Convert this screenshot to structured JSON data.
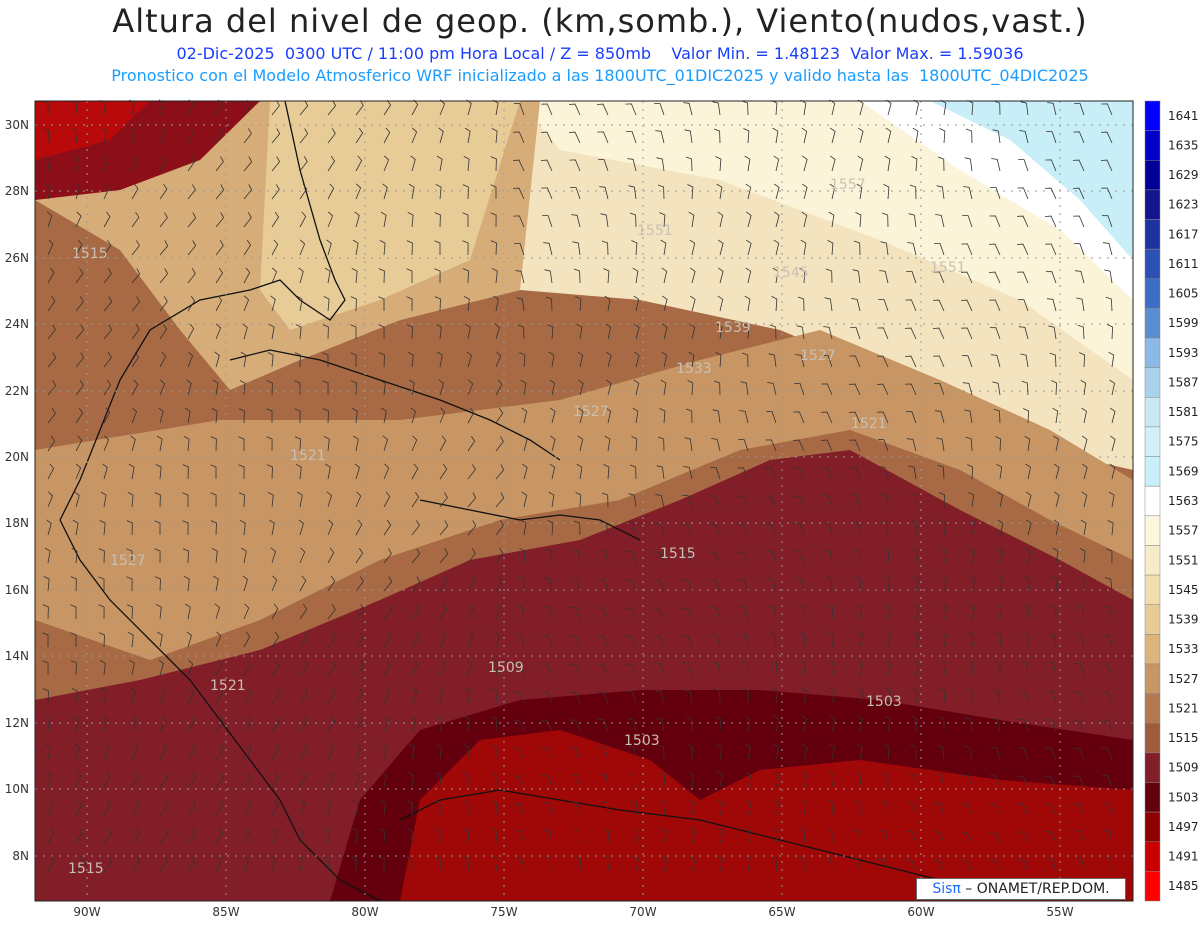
{
  "header": {
    "title": "Altura del nivel de geop. (km,somb.), Viento(nudos,vast.)",
    "line1": "02-Dic-2025  0300 UTC / 11:00 pm Hora Local / Z = 850mb    Valor Min. = 1.48123  Valor Max. = 1.59036",
    "line2": "Pronostico con el Modelo Atmosferico WRF inicializado a las 1800UTC_01DIC2025 y valido hasta las  1800UTC_04DIC2025"
  },
  "map": {
    "lon_labels": [
      "90W",
      "85W",
      "80W",
      "75W",
      "70W",
      "65W",
      "60W",
      "55W"
    ],
    "lat_labels": [
      "30N",
      "28N",
      "26N",
      "24N",
      "22N",
      "20N",
      "18N",
      "16N",
      "14N",
      "12N",
      "10N",
      "8N"
    ],
    "contour_labels": [
      "1515",
      "1551",
      "1557",
      "1545",
      "1551",
      "1539",
      "1533",
      "1527",
      "1527",
      "1521",
      "1521",
      "1527",
      "1515",
      "1509",
      "1521",
      "1503",
      "1503",
      "1515"
    ]
  },
  "colorbar": {
    "levels": [
      "1641",
      "1635",
      "1629",
      "1623",
      "1617",
      "1611",
      "1605",
      "1599",
      "1593",
      "1587",
      "1581",
      "1575",
      "1569",
      "1563",
      "1557",
      "1551",
      "1545",
      "1539",
      "1533",
      "1527",
      "1521",
      "1515",
      "1509",
      "1503",
      "1497",
      "1491",
      "1485"
    ],
    "colors": [
      "#0000ff",
      "#0000c8",
      "#000096",
      "#14148c",
      "#1e32a0",
      "#2d50b4",
      "#3c6ec8",
      "#5a8cd2",
      "#8cbae6",
      "#aad2ec",
      "#c8e8f4",
      "#d2f0f8",
      "#c8f0fa",
      "#ffffff",
      "#fcf6dc",
      "#f6ecc8",
      "#f0deb0",
      "#e8cc98",
      "#dcb47c",
      "#c89664",
      "#b47850",
      "#a05a3c",
      "#821e28",
      "#64000e",
      "#8c0000",
      "#c80000",
      "#ff0000"
    ]
  },
  "credit": {
    "sis": "Sisπ",
    "rest": " – ONAMET/REP.DOM."
  }
}
